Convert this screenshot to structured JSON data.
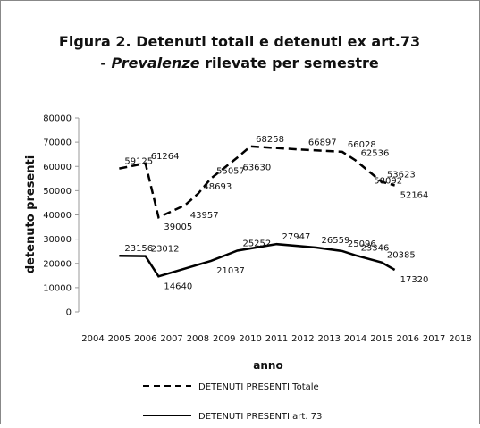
{
  "chart_data": {
    "type": "line",
    "title": "Figura 2. Detenuti totali e detenuti ex art.73",
    "subtitle_parts": [
      "- ",
      "Prevalenze",
      " rilevate per semestre"
    ],
    "y_label": "detenuto presenti",
    "x_label": "anno",
    "xlim": [
      2004,
      2018
    ],
    "xticks": [
      2004,
      2005,
      2006,
      2007,
      2008,
      2009,
      2010,
      2011,
      2012,
      2013,
      2014,
      2015,
      2016,
      2017,
      2018
    ],
    "ylim": [
      0,
      80000
    ],
    "yticks": [
      0,
      10000,
      20000,
      30000,
      40000,
      50000,
      60000,
      70000,
      80000
    ],
    "series": [
      {
        "name": "DETENUTI PRESENTI Totale",
        "color": "#000000",
        "dashed": true,
        "x": [
          2005,
          2006,
          2006.5,
          2007.5,
          2008,
          2008.5,
          2009.5,
          2010,
          2012,
          2013.5,
          2014,
          2014.5,
          2015,
          2015.5
        ],
        "values": [
          59125,
          61264,
          39005,
          43957,
          48693,
          55057,
          63630,
          68258,
          66897,
          66028,
          62536,
          58092,
          53623,
          52164
        ]
      },
      {
        "name": "DETENUTI PRESENTI art. 73",
        "color": "#000000",
        "dashed": false,
        "x": [
          2005,
          2006,
          2006.5,
          2008.5,
          2009.5,
          2011,
          2012.5,
          2013.5,
          2014,
          2015,
          2015.5
        ],
        "values": [
          23156,
          23012,
          14640,
          21037,
          25252,
          27947,
          26559,
          25096,
          23346,
          20385,
          17320
        ]
      }
    ]
  }
}
